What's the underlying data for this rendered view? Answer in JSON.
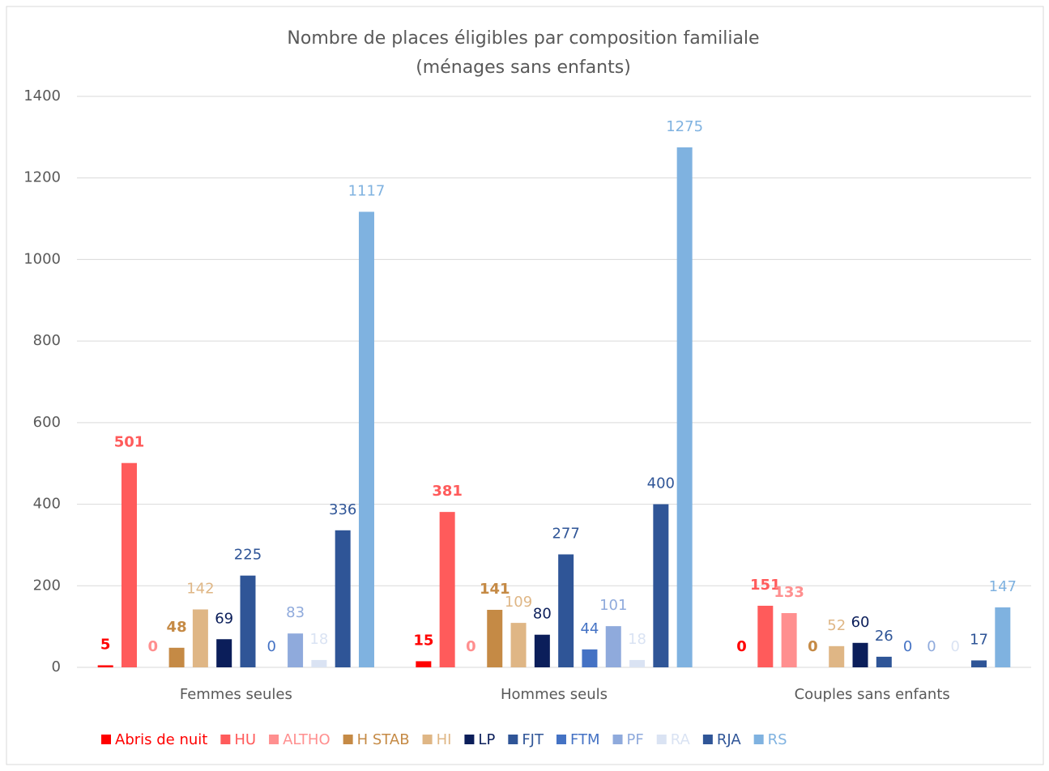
{
  "chart_data": {
    "type": "bar",
    "title": "Nombre de places éligibles par composition familiale",
    "subtitle": "(ménages sans enfants)",
    "categories": [
      "Femmes seules",
      "Hommes seuls",
      "Couples sans enfants"
    ],
    "ylim": [
      0,
      1400
    ],
    "yticks": [
      0,
      200,
      400,
      600,
      800,
      1000,
      1200,
      1400
    ],
    "grid": true,
    "legend": "bottom",
    "series": [
      {
        "name": "Abris de nuit",
        "color": "#ff0000",
        "values": [
          5,
          15,
          0
        ]
      },
      {
        "name": "HU",
        "color": "#ff5b5b",
        "values": [
          501,
          381,
          151
        ]
      },
      {
        "name": "ALTHO",
        "color": "#ff8f8f",
        "values": [
          0,
          0,
          133
        ]
      },
      {
        "name": "H STAB",
        "color": "#c58a45",
        "values": [
          48,
          141,
          0
        ]
      },
      {
        "name": "HI",
        "color": "#dfb685",
        "values": [
          142,
          109,
          52
        ]
      },
      {
        "name": "LP",
        "color": "#0b1e5a",
        "values": [
          69,
          80,
          60
        ]
      },
      {
        "name": "FJT",
        "color": "#2f5597",
        "values": [
          225,
          277,
          26
        ]
      },
      {
        "name": "FTM",
        "color": "#4472c4",
        "values": [
          0,
          44,
          0
        ]
      },
      {
        "name": "PF",
        "color": "#8faadc",
        "values": [
          83,
          101,
          0
        ]
      },
      {
        "name": "RA",
        "color": "#dae3f3",
        "values": [
          18,
          18,
          0
        ]
      },
      {
        "name": "RJA",
        "color": "#2f5597",
        "values": [
          336,
          400,
          17
        ]
      },
      {
        "name": "RS",
        "color": "#7fb2e0",
        "values": [
          1117,
          1275,
          147
        ]
      }
    ]
  }
}
